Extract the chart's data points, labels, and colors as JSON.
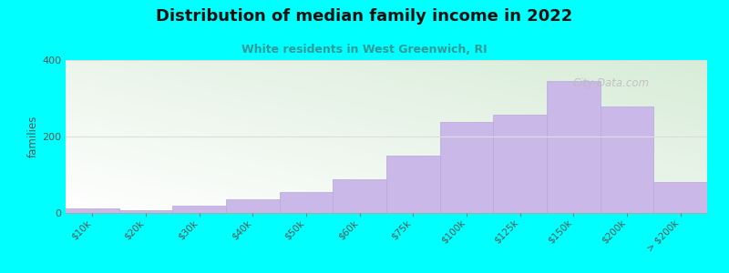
{
  "title": "Distribution of median family income in 2022",
  "subtitle": "White residents in West Greenwich, RI",
  "ylabel": "families",
  "categories": [
    "$10k",
    "$20k",
    "$30k",
    "$40k",
    "$50k",
    "$60k",
    "$75k",
    "$100k",
    "$125k",
    "$150k",
    "$200k",
    "> $200k"
  ],
  "values": [
    12,
    8,
    20,
    35,
    55,
    88,
    150,
    238,
    258,
    345,
    278,
    80
  ],
  "bar_color": "#c9b8e8",
  "bar_edgecolor": "#b8a8d8",
  "bg_color": "#00ffff",
  "plot_bg_color_topleft": "#d8ecd8",
  "plot_bg_color_bottomright": "#ffffff",
  "grid_color": "#dddddd",
  "title_color": "#111111",
  "subtitle_color": "#339999",
  "ylabel_color": "#555555",
  "tick_color": "#555555",
  "ylim": [
    0,
    400
  ],
  "yticks": [
    0,
    200,
    400
  ],
  "watermark_text": "City-Data.com",
  "watermark_color": "#bbbbbb"
}
